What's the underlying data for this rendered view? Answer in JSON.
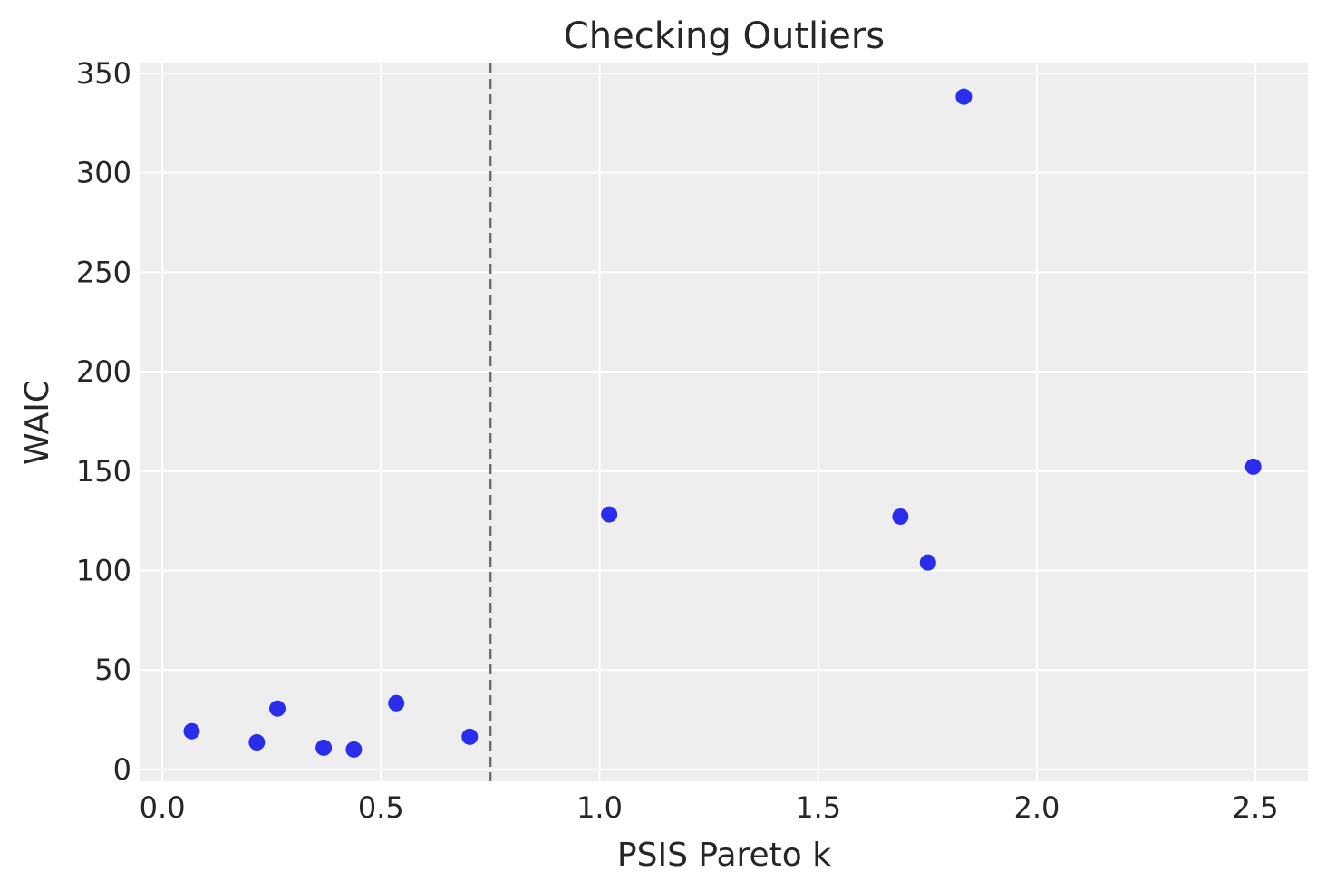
{
  "chart_data": {
    "type": "scatter",
    "title": "Checking Outliers",
    "xlabel": "PSIS Pareto k",
    "ylabel": "WAIC",
    "xlim": [
      -0.05,
      2.62
    ],
    "ylim": [
      -6,
      355
    ],
    "xticks": [
      0.0,
      0.5,
      1.0,
      1.5,
      2.0,
      2.5
    ],
    "xtick_labels": [
      "0.0",
      "0.5",
      "1.0",
      "1.5",
      "2.0",
      "2.5"
    ],
    "yticks": [
      0,
      50,
      100,
      150,
      200,
      250,
      300,
      350
    ],
    "ytick_labels": [
      "0",
      "50",
      "100",
      "150",
      "200",
      "250",
      "300",
      "350"
    ],
    "grid": true,
    "threshold_x": 0.75,
    "series": [
      {
        "x": [
          0.067,
          0.216,
          0.263,
          0.369,
          0.438,
          0.535,
          0.703,
          1.022,
          1.688,
          1.751,
          1.833,
          2.495
        ],
        "y": [
          19.2,
          13.6,
          30.6,
          10.9,
          10.0,
          33.3,
          16.4,
          128.2,
          127.1,
          104.0,
          338.3,
          152.2
        ]
      }
    ],
    "colors": {
      "points": "#2a2eec",
      "threshold": "#6e6e6e",
      "plot_background": "#eeeeee",
      "grid": "#ffffff",
      "text": "#262626"
    }
  }
}
